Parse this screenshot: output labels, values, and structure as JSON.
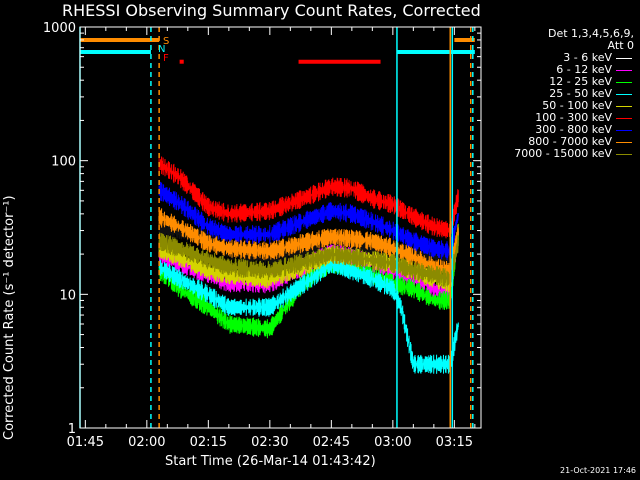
{
  "title": "RHESSI Observing Summary Count Rates, Corrected",
  "footer_date": "21-Oct-2021 17:46",
  "flags": {
    "s": "S",
    "n": "N",
    "f": "F"
  },
  "legend": {
    "header_line1": "Det 1,3,4,5,6,9,",
    "header_line2": "Att 0",
    "entries": [
      {
        "label": "3 - 6 keV",
        "color": "#000000"
      },
      {
        "label": "6 - 12 keV",
        "color": "#ff00ff"
      },
      {
        "label": "12 - 25 keV",
        "color": "#00ff00"
      },
      {
        "label": "25 - 50 keV",
        "color": "#00ffff"
      },
      {
        "label": "50 - 100 keV",
        "color": "#d4d400"
      },
      {
        "label": "100 - 300 keV",
        "color": "#ff0000"
      },
      {
        "label": "300 - 800 keV",
        "color": "#0000ff"
      },
      {
        "label": "800 - 7000 keV",
        "color": "#ff8c00"
      },
      {
        "label": "7000 - 15000 keV",
        "color": "#8b8b00"
      }
    ]
  },
  "chart_data": {
    "type": "line",
    "title": "RHESSI Observing Summary Count Rates, Corrected",
    "xlabel": "Start Time (26-Mar-14 01:43:42)",
    "ylabel": "Corrected Count Rate (s⁻¹ detector⁻¹)",
    "y_scale": "log",
    "ylim": [
      1,
      1000
    ],
    "xlim": [
      "01:43:42",
      "03:21:30"
    ],
    "x_ticks": [
      "01:45",
      "02:00",
      "02:15",
      "02:30",
      "02:45",
      "03:00",
      "03:15"
    ],
    "y_ticks": [
      "1",
      "10",
      "100",
      "1000"
    ],
    "data_start": "02:03",
    "data_end": "03:16",
    "series": [
      {
        "name": "3 - 6 keV",
        "color": "#000000",
        "points": [
          [
            "02:03",
            30
          ],
          [
            "02:08",
            30
          ],
          [
            "02:15",
            26
          ],
          [
            "02:20",
            21
          ],
          [
            "02:30",
            19
          ],
          [
            "02:40",
            22
          ],
          [
            "02:45",
            24
          ],
          [
            "02:50",
            23
          ],
          [
            "02:55",
            22
          ],
          [
            "03:00",
            21
          ],
          [
            "03:05",
            20
          ],
          [
            "03:10",
            19
          ],
          [
            "03:14",
            19
          ],
          [
            "03:16",
            30
          ]
        ]
      },
      {
        "name": "6 - 12 keV",
        "color": "#ff00ff",
        "points": [
          [
            "02:03",
            20
          ],
          [
            "02:08",
            17
          ],
          [
            "02:15",
            14
          ],
          [
            "02:20",
            12
          ],
          [
            "02:30",
            12
          ],
          [
            "02:40",
            17
          ],
          [
            "02:45",
            21
          ],
          [
            "02:50",
            19
          ],
          [
            "02:55",
            17
          ],
          [
            "03:00",
            15
          ],
          [
            "03:05",
            13
          ],
          [
            "03:10",
            11
          ],
          [
            "03:14",
            10
          ],
          [
            "03:16",
            30
          ]
        ]
      },
      {
        "name": "12 - 25 keV",
        "color": "#00ff00",
        "points": [
          [
            "02:03",
            15
          ],
          [
            "02:08",
            11
          ],
          [
            "02:15",
            8
          ],
          [
            "02:20",
            6
          ],
          [
            "02:30",
            5.5
          ],
          [
            "02:38",
            12
          ],
          [
            "02:45",
            17
          ],
          [
            "02:50",
            16
          ],
          [
            "02:55",
            14
          ],
          [
            "03:00",
            12
          ],
          [
            "03:05",
            11
          ],
          [
            "03:10",
            9
          ],
          [
            "03:14",
            9
          ],
          [
            "03:16",
            30
          ]
        ]
      },
      {
        "name": "25 - 50 keV",
        "color": "#00ffff",
        "points": [
          [
            "02:03",
            16
          ],
          [
            "02:08",
            13
          ],
          [
            "02:15",
            10
          ],
          [
            "02:20",
            8
          ],
          [
            "02:30",
            8
          ],
          [
            "02:40",
            13
          ],
          [
            "02:45",
            17
          ],
          [
            "02:50",
            15
          ],
          [
            "02:55",
            13
          ],
          [
            "03:00",
            11
          ],
          [
            "03:02",
            8
          ],
          [
            "03:05",
            3
          ],
          [
            "03:10",
            3
          ],
          [
            "03:14",
            3
          ],
          [
            "03:16",
            6
          ]
        ]
      },
      {
        "name": "50 - 100 keV",
        "color": "#d4d400",
        "points": [
          [
            "02:03",
            22
          ],
          [
            "02:08",
            19
          ],
          [
            "02:15",
            15
          ],
          [
            "02:20",
            14
          ],
          [
            "02:30",
            13
          ],
          [
            "02:40",
            17
          ],
          [
            "02:45",
            20
          ],
          [
            "02:50",
            19
          ],
          [
            "02:55",
            18
          ],
          [
            "03:00",
            17
          ],
          [
            "03:05",
            15
          ],
          [
            "03:10",
            13
          ],
          [
            "03:14",
            12
          ],
          [
            "03:16",
            30
          ]
        ]
      },
      {
        "name": "100 - 300 keV",
        "color": "#ff0000",
        "points": [
          [
            "02:03",
            95
          ],
          [
            "02:08",
            75
          ],
          [
            "02:15",
            45
          ],
          [
            "02:20",
            40
          ],
          [
            "02:30",
            42
          ],
          [
            "02:40",
            55
          ],
          [
            "02:45",
            64
          ],
          [
            "02:50",
            62
          ],
          [
            "02:55",
            52
          ],
          [
            "03:00",
            47
          ],
          [
            "03:05",
            38
          ],
          [
            "03:10",
            32
          ],
          [
            "03:14",
            30
          ],
          [
            "03:16",
            55
          ]
        ]
      },
      {
        "name": "300 - 800 keV",
        "color": "#0000ff",
        "points": [
          [
            "02:03",
            60
          ],
          [
            "02:08",
            48
          ],
          [
            "02:15",
            32
          ],
          [
            "02:20",
            28
          ],
          [
            "02:30",
            28
          ],
          [
            "02:40",
            37
          ],
          [
            "02:45",
            42
          ],
          [
            "02:50",
            40
          ],
          [
            "02:55",
            35
          ],
          [
            "03:00",
            30
          ],
          [
            "03:05",
            25
          ],
          [
            "03:10",
            22
          ],
          [
            "03:14",
            21
          ],
          [
            "03:16",
            40
          ]
        ]
      },
      {
        "name": "800 - 7000 keV",
        "color": "#ff8c00",
        "points": [
          [
            "02:03",
            38
          ],
          [
            "02:08",
            32
          ],
          [
            "02:15",
            24
          ],
          [
            "02:20",
            22
          ],
          [
            "02:30",
            21
          ],
          [
            "02:40",
            25
          ],
          [
            "02:45",
            27
          ],
          [
            "02:50",
            26
          ],
          [
            "02:55",
            25
          ],
          [
            "03:00",
            22
          ],
          [
            "03:05",
            19
          ],
          [
            "03:10",
            16
          ],
          [
            "03:14",
            15
          ],
          [
            "03:16",
            30
          ]
        ]
      },
      {
        "name": "7000 - 15000 keV",
        "color": "#8b8b00",
        "points": [
          [
            "02:03",
            25
          ],
          [
            "02:08",
            22
          ],
          [
            "02:15",
            18
          ],
          [
            "02:20",
            16
          ],
          [
            "02:30",
            15
          ],
          [
            "02:40",
            18
          ],
          [
            "02:45",
            20
          ],
          [
            "02:50",
            19
          ],
          [
            "02:55",
            18
          ],
          [
            "03:00",
            17
          ],
          [
            "03:05",
            15
          ],
          [
            "03:10",
            14
          ],
          [
            "03:14",
            13
          ],
          [
            "03:16",
            25
          ]
        ]
      }
    ],
    "flag_bars": [
      {
        "flag": "S",
        "color": "#ff8c00",
        "level": 800,
        "segments": [
          [
            "01:43:42",
            "02:03"
          ],
          [
            "03:15",
            "03:20"
          ]
        ]
      },
      {
        "flag": "N",
        "color": "#00ffff",
        "level": 650,
        "segments": [
          [
            "01:43:42",
            "02:01"
          ],
          [
            "03:01",
            "03:20"
          ]
        ]
      },
      {
        "flag": "F",
        "color": "#ff0000",
        "level": 550,
        "segments": [
          [
            "02:08",
            "02:09"
          ],
          [
            "02:37",
            "02:57"
          ]
        ]
      }
    ],
    "vertical_markers": [
      {
        "time": "01:43:42",
        "color": "#00ffff",
        "style": "solid"
      },
      {
        "time": "02:01",
        "color": "#00ffff",
        "style": "dashed"
      },
      {
        "time": "02:03",
        "color": "#ff8c00",
        "style": "dashed"
      },
      {
        "time": "03:01",
        "color": "#00ffff",
        "style": "solid"
      },
      {
        "time": "03:14",
        "color": "#ff8c00",
        "style": "solid"
      },
      {
        "time": "03:14.5",
        "color": "#00ffff",
        "style": "solid"
      },
      {
        "time": "03:19",
        "color": "#ff8c00",
        "style": "dashed"
      },
      {
        "time": "03:19.5",
        "color": "#00ffff",
        "style": "dashed"
      }
    ]
  }
}
